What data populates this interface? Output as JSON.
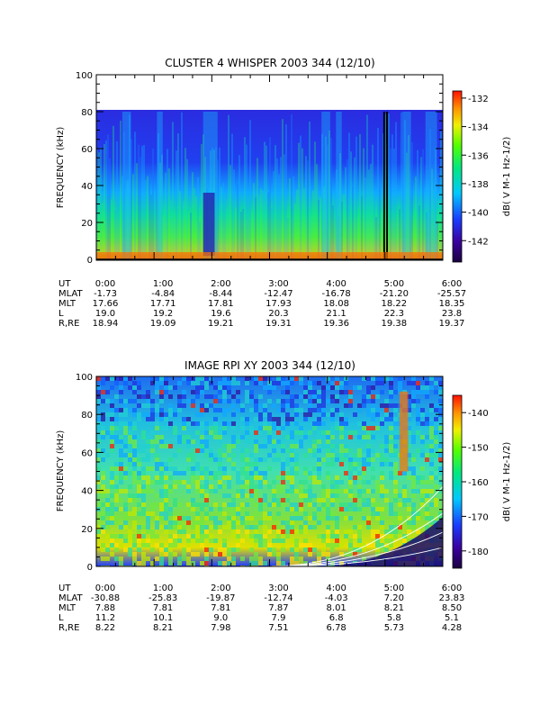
{
  "chart_data": [
    {
      "type": "heatmap",
      "title": "CLUSTER 4 WHISPER 2003 344 (12/10)",
      "ylabel": "FREQUENCY (kHz)",
      "ylim": [
        0,
        100
      ],
      "yticks": [
        "0",
        "20",
        "40",
        "60",
        "80",
        "100"
      ],
      "xlim_hours": [
        0,
        6
      ],
      "data_top_khz": 80,
      "colorbar": {
        "label": "dB( V M-1 Hz-1/2)",
        "range": [
          -143.5,
          -131.5
        ],
        "ticks": [
          "-132",
          "-134",
          "-136",
          "-138",
          "-140",
          "-142"
        ],
        "tick_values": [
          -132,
          -134,
          -136,
          -138,
          -140,
          -142
        ]
      },
      "dark_bands_hours": [
        [
          4.97,
          5.0
        ],
        [
          5.02,
          5.05
        ]
      ],
      "ephemeris": {
        "rows": [
          {
            "label": "UT",
            "values": [
              "0:00",
              "1:00",
              "2:00",
              "3:00",
              "4:00",
              "5:00",
              "6:00"
            ]
          },
          {
            "label": "MLAT",
            "values": [
              "-1.73",
              "-4.84",
              "-8.44",
              "-12.47",
              "-16.78",
              "-21.20",
              "-25.57"
            ]
          },
          {
            "label": "MLT",
            "values": [
              "17.66",
              "17.71",
              "17.81",
              "17.93",
              "18.08",
              "18.22",
              "18.35"
            ]
          },
          {
            "label": "L",
            "values": [
              "19.0",
              "19.2",
              "19.6",
              "20.3",
              "21.1",
              "22.3",
              "23.8"
            ]
          },
          {
            "label": "R,RE",
            "values": [
              "18.94",
              "19.09",
              "19.21",
              "19.31",
              "19.36",
              "19.38",
              "19.37"
            ]
          }
        ]
      }
    },
    {
      "type": "heatmap",
      "title": "IMAGE RPI XY 2003 344 (12/10)",
      "ylabel": "FREQUENCY (kHz)",
      "ylim": [
        0,
        100
      ],
      "yticks": [
        "0",
        "20",
        "40",
        "60",
        "80",
        "100"
      ],
      "xlim_hours": [
        0,
        6
      ],
      "colorbar": {
        "label": "dB( V M-1 Hz-1/2)",
        "range": [
          -185,
          -135
        ],
        "ticks": [
          "-140",
          "-150",
          "-160",
          "-170",
          "-180"
        ],
        "tick_values": [
          -140,
          -150,
          -160,
          -170,
          -180
        ]
      },
      "ephemeris": {
        "rows": [
          {
            "label": "UT",
            "values": [
              "0:00",
              "1:00",
              "2:00",
              "3:00",
              "4:00",
              "5:00",
              "6:00"
            ]
          },
          {
            "label": "MLAT",
            "values": [
              "-30.88",
              "-25.83",
              "-19.87",
              "-12.74",
              "-4.03",
              "7.20",
              "23.83"
            ]
          },
          {
            "label": "MLT",
            "values": [
              "7.88",
              "7.81",
              "7.81",
              "7.87",
              "8.01",
              "8.21",
              "8.50"
            ]
          },
          {
            "label": "L",
            "values": [
              "11.2",
              "10.1",
              "9.0",
              "7.9",
              "6.8",
              "5.8",
              "5.1"
            ]
          },
          {
            "label": "R,RE",
            "values": [
              "8.22",
              "8.21",
              "7.98",
              "7.51",
              "6.78",
              "5.73",
              "4.28"
            ]
          }
        ]
      }
    }
  ]
}
